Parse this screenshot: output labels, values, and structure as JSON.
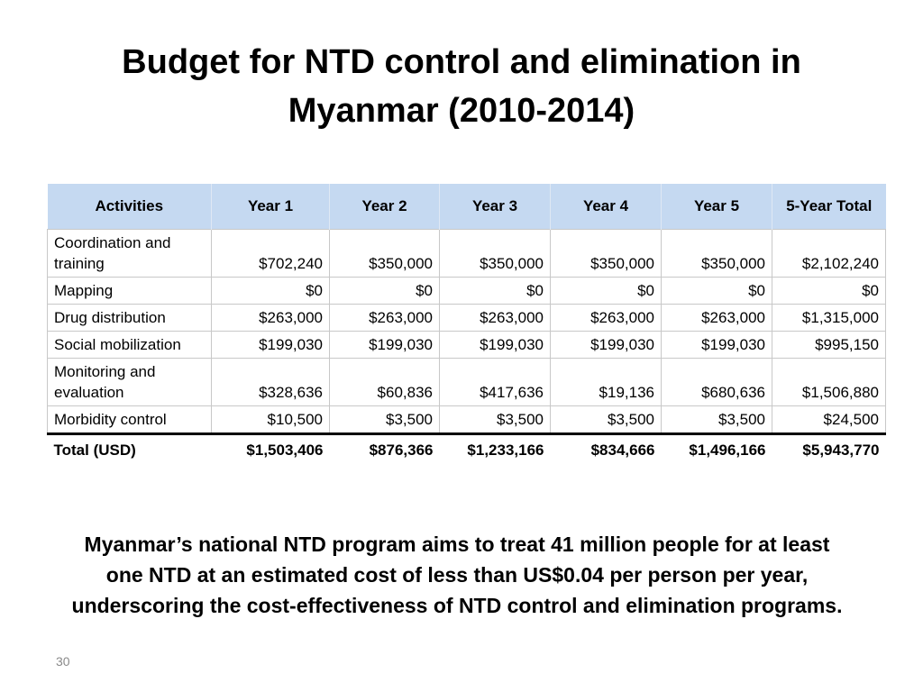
{
  "slide": {
    "title": "Budget for NTD control and elimination in\nMyanmar (2010-2014)",
    "page_number": "30",
    "caption": "Myanmar’s national NTD program aims to treat 41 million people for at least one NTD at an estimated cost of less than US$0.04 per person per year, underscoring the cost-effectiveness of NTD control and elimination programs."
  },
  "table": {
    "headers": [
      "Activities",
      "Year 1",
      "Year 2",
      "Year 3",
      "Year 4",
      "Year 5",
      "5-Year Total"
    ],
    "rows": [
      [
        "Coordination and training",
        "$702,240",
        "$350,000",
        "$350,000",
        "$350,000",
        "$350,000",
        "$2,102,240"
      ],
      [
        "Mapping",
        "$0",
        "$0",
        "$0",
        "$0",
        "$0",
        "$0"
      ],
      [
        "Drug distribution",
        "$263,000",
        "$263,000",
        "$263,000",
        "$263,000",
        "$263,000",
        "$1,315,000"
      ],
      [
        "Social mobilization",
        "$199,030",
        "$199,030",
        "$199,030",
        "$199,030",
        "$199,030",
        "$995,150"
      ],
      [
        "Monitoring and evaluation",
        "$328,636",
        "$60,836",
        "$417,636",
        "$19,136",
        "$680,636",
        "$1,506,880"
      ],
      [
        "Morbidity control",
        "$10,500",
        "$3,500",
        "$3,500",
        "$3,500",
        "$3,500",
        "$24,500"
      ]
    ],
    "total": [
      "Total (USD)",
      "$1,503,406",
      "$876,366",
      "$1,233,166",
      "$834,666",
      "$1,496,166",
      "$5,943,770"
    ]
  }
}
